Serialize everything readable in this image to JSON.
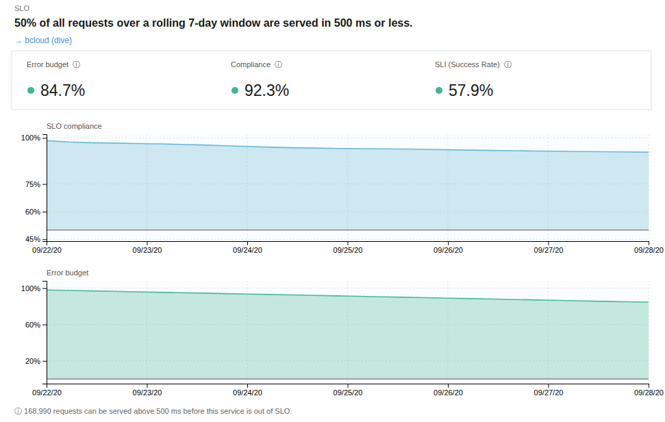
{
  "title": "50% of all requests over a rolling 7-day window are served in 500 ms or less.",
  "subtitle": "→ bcloud (dive)",
  "annotations": [
    "SLO",
    "ⓘ 168,990 requests can be served above 500 ms before this service is out of SLO."
  ],
  "metrics": {
    "labels": [
      "Error budget  ⓘ",
      "Compliance  ⓘ",
      "SLI (Success Rate)  ⓘ"
    ],
    "values": [
      84.7,
      92.3,
      57.9
    ],
    "value_labels": [
      "84.7%",
      "92.3%",
      "57.9%"
    ],
    "colors": [
      "#3DB88B",
      "#3DB88B",
      "#3DB88B"
    ]
  },
  "chart_data": [
    {
      "type": "area",
      "title": "SLO compliance",
      "x": [
        0,
        0.2222222222222222,
        0.4444444444444444,
        0.6666666666666666,
        0.8888888888888888,
        1.1111111111111112,
        1.3333333333333333,
        1.5555555555555556,
        1.7777777777777777,
        2,
        2.2222222222222223,
        2.4444444444444446,
        2.6666666666666665,
        2.888888888888889,
        3.111111111111111,
        3.3333333333333335,
        3.5555555555555554,
        3.7777777777777777,
        4,
        4.222222222222222,
        4.444444444444445,
        4.666666666666667,
        4.888888888888889,
        5.111111111111111,
        5.333333333333333,
        5.555555555555555,
        5.777777777777778,
        6
      ],
      "values": [
        98.5,
        97.8,
        97.4,
        97.2,
        97.0,
        96.8,
        96.5,
        96.2,
        95.8,
        95.4,
        95.0,
        94.7,
        94.5,
        94.3,
        94.2,
        94.1,
        94.0,
        93.8,
        93.6,
        93.4,
        93.2,
        93.1,
        92.9,
        92.8,
        92.6,
        92.5,
        92.4,
        92.3
      ],
      "color": "#6BB8D4",
      "baseline": 50,
      "xlim": [
        0,
        6
      ],
      "xticks": [
        {
          "value": 0,
          "label": "09/22/20"
        },
        {
          "value": 1,
          "label": "09/23/20"
        },
        {
          "value": 2,
          "label": "09/24/20"
        },
        {
          "value": 3,
          "label": "09/25/20"
        },
        {
          "value": 4,
          "label": "09/26/20"
        },
        {
          "value": 5,
          "label": "09/27/20"
        },
        {
          "value": 6,
          "label": "09/28/20"
        }
      ],
      "ylim": [
        44,
        102
      ],
      "yticks": [
        {
          "value": 45,
          "label": "45%"
        },
        {
          "value": 60,
          "label": "60%"
        },
        {
          "value": 75,
          "label": "75%"
        },
        {
          "value": 100,
          "label": "100%"
        }
      ],
      "grid": true
    },
    {
      "type": "area",
      "title": "Error budget",
      "x": [
        0,
        0.2222222222222222,
        0.4444444444444444,
        0.6666666666666666,
        0.8888888888888888,
        1.1111111111111112,
        1.3333333333333333,
        1.5555555555555556,
        1.7777777777777777,
        2,
        2.2222222222222223,
        2.4444444444444446,
        2.6666666666666665,
        2.888888888888889,
        3.111111111111111,
        3.3333333333333335,
        3.5555555555555554,
        3.7777777777777777,
        4,
        4.222222222222222,
        4.444444444444445,
        4.666666666666667,
        4.888888888888889,
        5.111111111111111,
        5.333333333333333,
        5.555555555555555,
        5.777777777777778,
        6
      ],
      "values": [
        98.0,
        97.5,
        97.0,
        96.5,
        96.0,
        95.5,
        95.0,
        94.5,
        94.0,
        93.5,
        93.0,
        92.5,
        92.0,
        91.5,
        91.0,
        90.5,
        90.0,
        89.5,
        89.0,
        88.5,
        88.0,
        87.5,
        87.0,
        86.5,
        86.0,
        85.5,
        85.0,
        84.7
      ],
      "color": "#4BB896",
      "baseline": 0,
      "xlim": [
        0,
        6
      ],
      "xticks": [
        {
          "value": 0,
          "label": "09/22/20"
        },
        {
          "value": 1,
          "label": "09/23/20"
        },
        {
          "value": 2,
          "label": "09/24/20"
        },
        {
          "value": 3,
          "label": "09/25/20"
        },
        {
          "value": 4,
          "label": "09/26/20"
        },
        {
          "value": 5,
          "label": "09/27/20"
        },
        {
          "value": 6,
          "label": "09/28/20"
        }
      ],
      "ylim": [
        -5,
        108
      ],
      "yticks": [
        {
          "value": 20,
          "label": "20%"
        },
        {
          "value": 60,
          "label": "60%"
        },
        {
          "value": 100,
          "label": "100%"
        }
      ],
      "grid": true
    }
  ]
}
